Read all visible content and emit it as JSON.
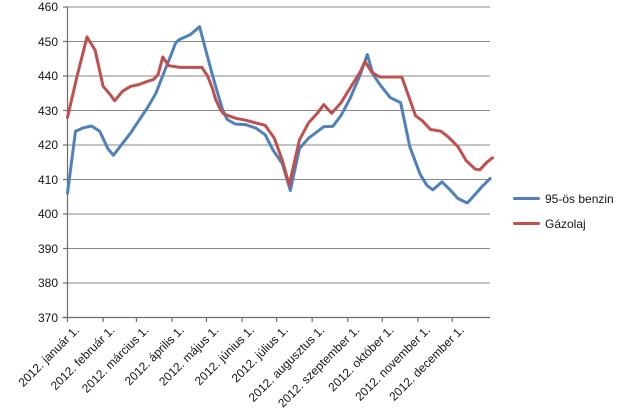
{
  "chart_data": {
    "type": "line",
    "title": "",
    "grid": true,
    "legend_position": "right",
    "x_axis": {
      "tick_labels": [
        "2012. január 1.",
        "2012. február 1.",
        "2012. március 1.",
        "2012. április 1.",
        "2012. május 1.",
        "2012. június 1.",
        "2012. július 1.",
        "2012. augusztus 1.",
        "2012. szeptember 1.",
        "2012. október 1.",
        "2012. november 1.",
        "2012. december 1."
      ],
      "tick_days": [
        0,
        31,
        60,
        91,
        121,
        152,
        182,
        213,
        244,
        274,
        305,
        335
      ],
      "domain_days": [
        0,
        370
      ]
    },
    "y_axis": {
      "min": 370,
      "max": 460,
      "step": 10,
      "tick_labels": [
        "370",
        "380",
        "390",
        "400",
        "410",
        "420",
        "430",
        "440",
        "450",
        "460"
      ]
    },
    "series": [
      {
        "name": "95-ös benzin",
        "color": "#4F81BD",
        "points": [
          [
            0,
            406
          ],
          [
            7,
            424
          ],
          [
            14,
            425
          ],
          [
            21,
            425.5
          ],
          [
            28,
            424
          ],
          [
            35,
            419
          ],
          [
            40,
            417
          ],
          [
            48,
            420.5
          ],
          [
            55,
            423.5
          ],
          [
            62,
            427
          ],
          [
            70,
            431
          ],
          [
            77,
            435
          ],
          [
            84,
            441
          ],
          [
            90,
            446
          ],
          [
            94,
            449.5
          ],
          [
            97,
            450.5
          ],
          [
            107,
            452
          ],
          [
            115,
            454.3
          ],
          [
            120,
            448
          ],
          [
            126,
            440.5
          ],
          [
            131,
            434.7
          ],
          [
            135,
            430.3
          ],
          [
            139,
            427.4
          ],
          [
            146,
            426.1
          ],
          [
            155,
            425.9
          ],
          [
            164,
            424.9
          ],
          [
            172,
            423
          ],
          [
            179,
            418.5
          ],
          [
            187,
            414.6
          ],
          [
            194,
            406.8
          ],
          [
            202,
            419
          ],
          [
            210,
            422
          ],
          [
            218,
            424
          ],
          [
            223,
            425.3
          ],
          [
            231,
            425.4
          ],
          [
            238,
            428.5
          ],
          [
            246,
            433.5
          ],
          [
            255,
            440.5
          ],
          [
            261,
            446.2
          ],
          [
            266,
            440.5
          ],
          [
            272,
            437.5
          ],
          [
            281,
            433.7
          ],
          [
            290,
            432.3
          ],
          [
            298,
            419.5
          ],
          [
            307,
            411.5
          ],
          [
            313,
            408.3
          ],
          [
            318,
            407
          ],
          [
            326,
            409.3
          ],
          [
            333,
            407
          ],
          [
            340,
            404.5
          ],
          [
            348,
            403.2
          ],
          [
            353,
            405
          ],
          [
            361,
            408
          ],
          [
            368,
            410.3
          ]
        ]
      },
      {
        "name": "Gázolaj",
        "color": "#C0504D",
        "points": [
          [
            0,
            428
          ],
          [
            8,
            439.5
          ],
          [
            17,
            451.3
          ],
          [
            24,
            447.5
          ],
          [
            31,
            437
          ],
          [
            37,
            434.7
          ],
          [
            41,
            432.8
          ],
          [
            48,
            435.6
          ],
          [
            55,
            437
          ],
          [
            62,
            437.5
          ],
          [
            70,
            438.5
          ],
          [
            75,
            439
          ],
          [
            79,
            440.5
          ],
          [
            83,
            445.5
          ],
          [
            88,
            443
          ],
          [
            98,
            442.5
          ],
          [
            111,
            442.5
          ],
          [
            117,
            442.5
          ],
          [
            122,
            440
          ],
          [
            126,
            436.6
          ],
          [
            129,
            433.2
          ],
          [
            133,
            430.3
          ],
          [
            136,
            429
          ],
          [
            146,
            427.8
          ],
          [
            155,
            427.2
          ],
          [
            164,
            426.4
          ],
          [
            172,
            425.7
          ],
          [
            180,
            422
          ],
          [
            187,
            415.6
          ],
          [
            193,
            408.4
          ],
          [
            202,
            421.5
          ],
          [
            210,
            426.5
          ],
          [
            218,
            429.4
          ],
          [
            223,
            431.7
          ],
          [
            230,
            429.2
          ],
          [
            238,
            432.2
          ],
          [
            246,
            436.5
          ],
          [
            255,
            441.3
          ],
          [
            259,
            444.2
          ],
          [
            265,
            441
          ],
          [
            272,
            439.7
          ],
          [
            291,
            439.7
          ],
          [
            298,
            433.2
          ],
          [
            303,
            428.5
          ],
          [
            309,
            427
          ],
          [
            316,
            424.5
          ],
          [
            325,
            424
          ],
          [
            331,
            422.5
          ],
          [
            340,
            419.5
          ],
          [
            347,
            415.5
          ],
          [
            355,
            413
          ],
          [
            359,
            412.8
          ],
          [
            365,
            415
          ],
          [
            370,
            416.3
          ]
        ]
      }
    ]
  },
  "style": {
    "gridline_color": "#898989",
    "axis_color": "#6e6e6e",
    "label_color": "#141414"
  }
}
